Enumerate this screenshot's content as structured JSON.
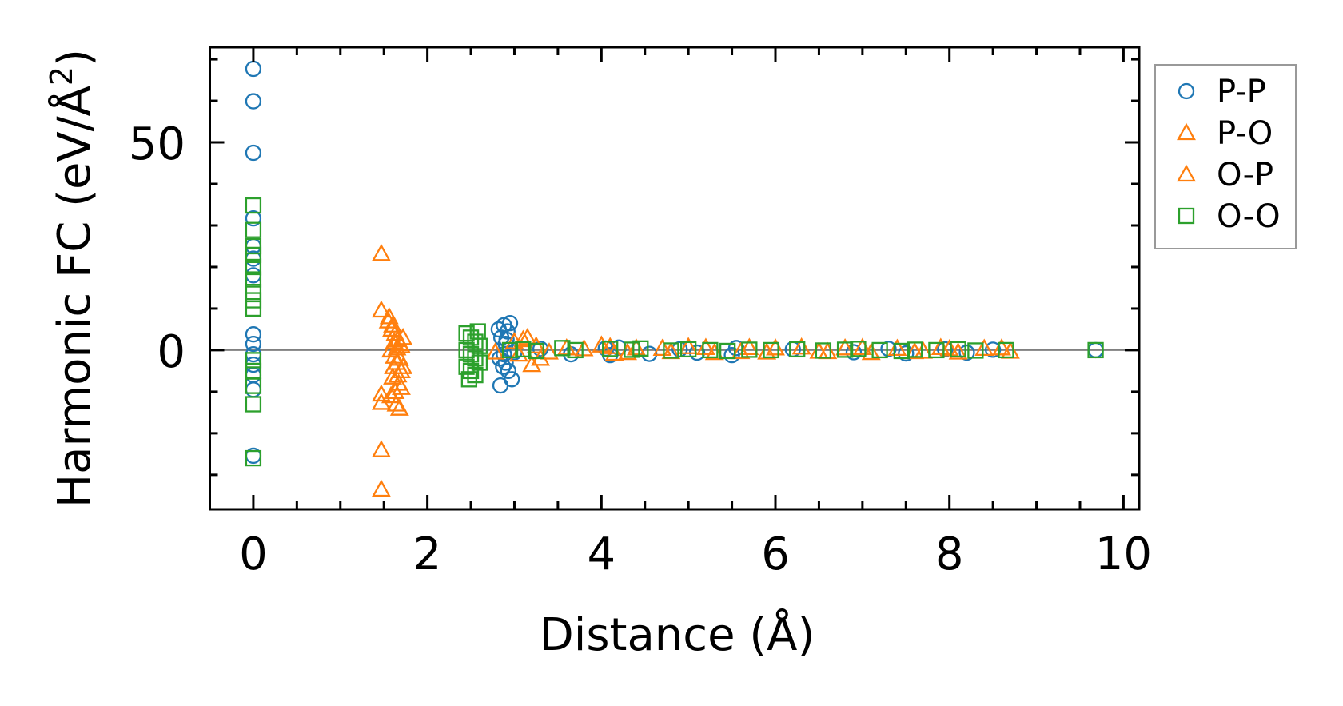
{
  "chart_data": {
    "type": "scatter",
    "title": "",
    "xlabel": "Distance (Å)",
    "ylabel_main": "Harmonic FC (eV/Å",
    "ylabel_sup": "2",
    "ylabel_end": ")",
    "xlim": [
      -0.5,
      10.18
    ],
    "ylim": [
      -38.3,
      72.9
    ],
    "xticks_major": [
      0,
      2,
      4,
      6,
      8,
      10
    ],
    "xtick_labels": [
      "0",
      "2",
      "4",
      "6",
      "8",
      "10"
    ],
    "xticks_minor_step": 0.5,
    "yticks_major": [
      0,
      50
    ],
    "ytick_labels": [
      "0",
      "50"
    ],
    "yticks_minor_step": 10,
    "grid": false,
    "zero_line": {
      "y": 0,
      "color": "#808080"
    },
    "legend_position": "outside-top-right",
    "series": [
      {
        "name": "P-P",
        "marker": "circle",
        "color": "#1f77b4",
        "points": [
          [
            0,
            67.7
          ],
          [
            0,
            59.9
          ],
          [
            0,
            47.5
          ],
          [
            0,
            31.7
          ],
          [
            0,
            25
          ],
          [
            0,
            22
          ],
          [
            0,
            18
          ],
          [
            0,
            3.8
          ],
          [
            0,
            1.5
          ],
          [
            0,
            -1
          ],
          [
            0,
            -3.5
          ],
          [
            0,
            -6
          ],
          [
            0,
            -9.5
          ],
          [
            0,
            -25.4
          ],
          [
            2.82,
            5
          ],
          [
            2.85,
            3
          ],
          [
            2.88,
            6
          ],
          [
            2.9,
            1.5
          ],
          [
            2.92,
            4.5
          ],
          [
            2.95,
            6.5
          ],
          [
            2.83,
            -2
          ],
          [
            2.87,
            -4
          ],
          [
            2.9,
            -3
          ],
          [
            2.93,
            -5
          ],
          [
            2.97,
            -7
          ],
          [
            2.84,
            -8.5
          ],
          [
            2.88,
            -1
          ],
          [
            2.91,
            2.5
          ],
          [
            3.0,
            -0.5
          ],
          [
            3.3,
            0.3
          ],
          [
            3.65,
            -1.0
          ],
          [
            4.05,
            0.4
          ],
          [
            4.1,
            -1.2
          ],
          [
            4.2,
            0.6
          ],
          [
            4.55,
            -0.9
          ],
          [
            4.9,
            0.2
          ],
          [
            5.1,
            -0.6
          ],
          [
            5.5,
            -1.2
          ],
          [
            5.55,
            0.5
          ],
          [
            6.2,
            0.2
          ],
          [
            6.9,
            -0.5
          ],
          [
            7.3,
            0.3
          ],
          [
            7.5,
            -0.8
          ],
          [
            7.95,
            0.2
          ],
          [
            8.2,
            -0.6
          ],
          [
            8.5,
            0.1
          ],
          [
            9.68,
            0
          ]
        ]
      },
      {
        "name": "P-O",
        "marker": "triangle",
        "color": "#ff7f0e",
        "points": [
          [
            1.47,
            23.2
          ],
          [
            1.47,
            9.6
          ],
          [
            1.47,
            -10.6
          ],
          [
            1.47,
            -12.6
          ],
          [
            1.47,
            -24
          ],
          [
            1.47,
            -33.5
          ],
          [
            1.56,
            8
          ],
          [
            1.6,
            6
          ],
          [
            1.63,
            4
          ],
          [
            1.66,
            2.5
          ],
          [
            1.7,
            1
          ],
          [
            1.58,
            0
          ],
          [
            1.62,
            -1.5
          ],
          [
            1.65,
            -3
          ],
          [
            1.7,
            -5
          ],
          [
            1.6,
            -6.5
          ],
          [
            1.67,
            -8
          ],
          [
            1.58,
            -11
          ],
          [
            1.64,
            -13
          ],
          [
            1.68,
            -14
          ],
          [
            1.72,
            -4
          ],
          [
            1.72,
            3
          ],
          [
            2.78,
            -0.5
          ],
          [
            3.0,
            2
          ],
          [
            3.15,
            3
          ],
          [
            3.2,
            -3.5
          ],
          [
            3.25,
            1
          ],
          [
            3.4,
            -0.5
          ],
          [
            3.8,
            0.3
          ],
          [
            4.0,
            1.2
          ],
          [
            4.15,
            -0.8
          ],
          [
            4.4,
            0.5
          ],
          [
            4.8,
            -0.4
          ],
          [
            5.0,
            0.8
          ],
          [
            5.3,
            -0.6
          ],
          [
            5.7,
            0.6
          ],
          [
            5.9,
            -0.5
          ],
          [
            6.3,
            0.7
          ],
          [
            6.6,
            -0.4
          ],
          [
            6.8,
            0.5
          ],
          [
            7.1,
            -0.6
          ],
          [
            7.4,
            0.4
          ],
          [
            7.7,
            -0.3
          ],
          [
            7.9,
            0.6
          ],
          [
            8.1,
            -0.5
          ],
          [
            8.4,
            0.4
          ],
          [
            8.7,
            -0.3
          ]
        ]
      },
      {
        "name": "O-P",
        "marker": "triangle",
        "color": "#ff7f0e",
        "points": [
          [
            1.55,
            7
          ],
          [
            1.59,
            5
          ],
          [
            1.62,
            2
          ],
          [
            1.65,
            0.5
          ],
          [
            1.68,
            -2
          ],
          [
            1.61,
            -4
          ],
          [
            1.66,
            -6
          ],
          [
            1.7,
            -9
          ],
          [
            1.63,
            -10
          ],
          [
            1.69,
            1.5
          ],
          [
            3.05,
            -1
          ],
          [
            3.1,
            2.5
          ],
          [
            3.3,
            -2
          ],
          [
            3.6,
            0.5
          ],
          [
            4.1,
            0.8
          ],
          [
            4.3,
            -0.6
          ],
          [
            4.7,
            0.4
          ],
          [
            5.2,
            0.6
          ],
          [
            5.6,
            -0.4
          ],
          [
            6.0,
            0.5
          ],
          [
            6.5,
            -0.3
          ],
          [
            7.0,
            0.6
          ],
          [
            7.6,
            -0.4
          ],
          [
            8.0,
            0.3
          ],
          [
            8.6,
            0.5
          ]
        ]
      },
      {
        "name": "O-O",
        "marker": "square",
        "color": "#2ca02c",
        "points": [
          [
            0,
            34.8
          ],
          [
            0,
            28.9
          ],
          [
            0,
            25
          ],
          [
            0,
            22.9
          ],
          [
            0,
            20
          ],
          [
            0,
            17
          ],
          [
            0,
            14
          ],
          [
            0,
            12
          ],
          [
            0,
            10
          ],
          [
            0,
            -2.4
          ],
          [
            0,
            -5
          ],
          [
            0,
            -8.6
          ],
          [
            0,
            -13
          ],
          [
            0,
            -26
          ],
          [
            2.45,
            4
          ],
          [
            2.5,
            3
          ],
          [
            2.55,
            2
          ],
          [
            2.6,
            1
          ],
          [
            2.45,
            0
          ],
          [
            2.5,
            -1
          ],
          [
            2.55,
            -2
          ],
          [
            2.6,
            -3
          ],
          [
            2.45,
            -4
          ],
          [
            2.5,
            -5
          ],
          [
            2.55,
            -6
          ],
          [
            2.48,
            -7
          ],
          [
            2.58,
            4.5
          ],
          [
            2.95,
            0
          ],
          [
            3.1,
            0.2
          ],
          [
            3.25,
            -0.2
          ],
          [
            3.55,
            0.5
          ],
          [
            3.7,
            0
          ],
          [
            4.1,
            0.3
          ],
          [
            4.35,
            0.1
          ],
          [
            4.45,
            0.4
          ],
          [
            4.8,
            -0.1
          ],
          [
            5.0,
            0.2
          ],
          [
            5.25,
            0
          ],
          [
            5.45,
            -0.2
          ],
          [
            5.7,
            0.1
          ],
          [
            5.95,
            0
          ],
          [
            6.25,
            0.2
          ],
          [
            6.55,
            -0.1
          ],
          [
            6.8,
            0.1
          ],
          [
            6.95,
            0.3
          ],
          [
            7.2,
            0
          ],
          [
            7.45,
            -0.2
          ],
          [
            7.6,
            0.1
          ],
          [
            7.85,
            0
          ],
          [
            8.1,
            0.2
          ],
          [
            8.3,
            -0.1
          ],
          [
            8.65,
            0
          ],
          [
            9.68,
            0
          ]
        ]
      }
    ]
  }
}
